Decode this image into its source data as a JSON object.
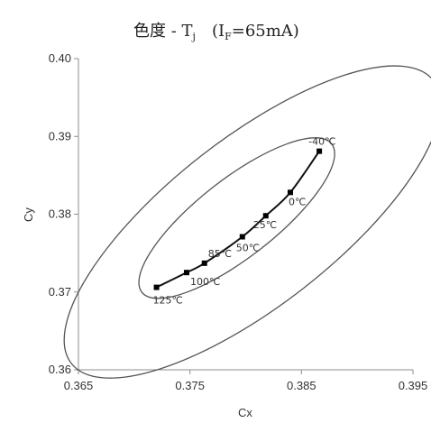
{
  "chart_data": {
    "type": "line",
    "title": {
      "main": "色度 - T",
      "main_sub": "j",
      "cond_open": "(I",
      "cond_sub": "F",
      "cond_rest": "=65mA)"
    },
    "xlabel": "Cx",
    "ylabel": "Cy",
    "xlim": [
      0.365,
      0.395
    ],
    "ylim": [
      0.36,
      0.4
    ],
    "x_ticks": [
      "0.365",
      "0.375",
      "0.385",
      "0.395"
    ],
    "y_ticks": [
      "0.36",
      "0.37",
      "0.38",
      "0.39",
      "0.40"
    ],
    "grid": false,
    "legend": false,
    "series": [
      {
        "points": [
          {
            "x": 0.372,
            "y": 0.3706,
            "label": "125℃"
          },
          {
            "x": 0.3747,
            "y": 0.3725,
            "label": "100℃"
          },
          {
            "x": 0.3763,
            "y": 0.3737,
            "label": "85℃"
          },
          {
            "x": 0.3797,
            "y": 0.3771,
            "label": "50℃"
          },
          {
            "x": 0.3818,
            "y": 0.3798,
            "label": "25℃"
          },
          {
            "x": 0.384,
            "y": 0.3828,
            "label": "0℃"
          },
          {
            "x": 0.3866,
            "y": 0.3881,
            "label": "-40℃"
          }
        ]
      }
    ],
    "ellipses": [
      {
        "cx": 0.3792,
        "cy": 0.3795,
        "rx": 0.0108,
        "ry": 0.0035,
        "angle_deg": -38
      },
      {
        "cx": 0.3806,
        "cy": 0.379,
        "rx": 0.0206,
        "ry": 0.0075,
        "angle_deg": -38
      }
    ]
  }
}
